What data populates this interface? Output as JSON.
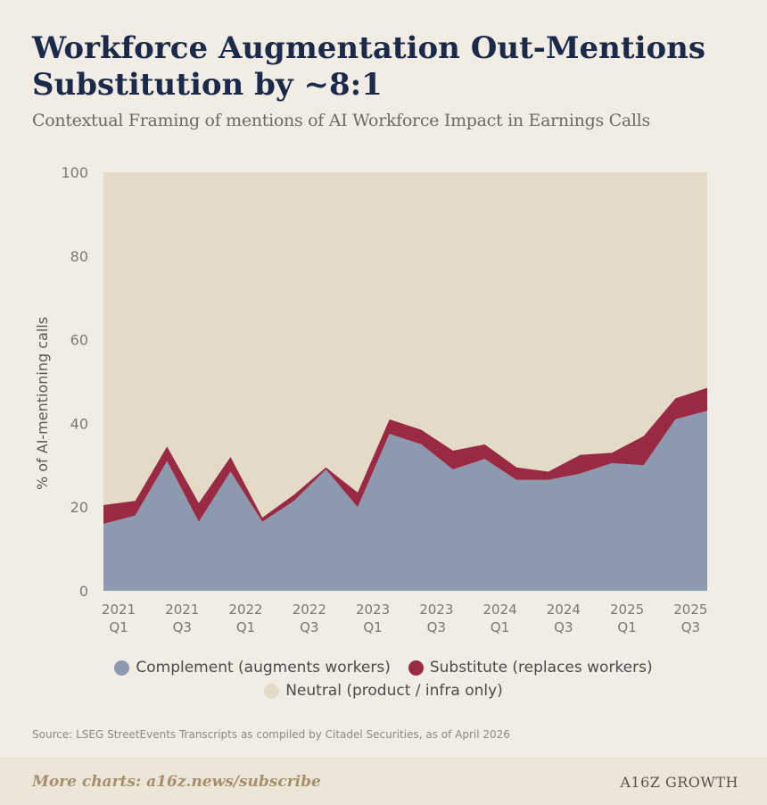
{
  "header": {
    "title": "Workforce Augmentation Out-Mentions\nSubstitution by ~8:1",
    "subtitle": "Contextual Framing of mentions of AI Workforce Impact in Earnings Calls"
  },
  "colors": {
    "complement": "#8b9aaf",
    "substitute": "#9a2a43",
    "neutral": "#e3dac8",
    "axis_text": "#7a7875"
  },
  "chart_data": {
    "type": "area",
    "stacked": true,
    "ylabel": "% of AI-mentioning calls",
    "ylim": [
      0,
      100
    ],
    "yticks": [
      0,
      20,
      40,
      60,
      80,
      100
    ],
    "x": [
      "2021 Q1",
      "2021 Q2",
      "2021 Q3",
      "2021 Q4",
      "2022 Q1",
      "2022 Q2",
      "2022 Q3",
      "2022 Q4",
      "2023 Q1",
      "2023 Q2",
      "2023 Q3",
      "2023 Q4",
      "2024 Q1",
      "2024 Q2",
      "2024 Q3",
      "2024 Q4",
      "2025 Q1",
      "2025 Q2",
      "2025 Q3",
      "2025 Q4"
    ],
    "xtick_labels": [
      {
        "year": "2021",
        "q": "Q1"
      },
      {
        "year": "2021",
        "q": "Q3"
      },
      {
        "year": "2022",
        "q": "Q1"
      },
      {
        "year": "2022",
        "q": "Q3"
      },
      {
        "year": "2023",
        "q": "Q1"
      },
      {
        "year": "2023",
        "q": "Q3"
      },
      {
        "year": "2024",
        "q": "Q1"
      },
      {
        "year": "2024",
        "q": "Q3"
      },
      {
        "year": "2025",
        "q": "Q1"
      },
      {
        "year": "2025",
        "q": "Q3"
      }
    ],
    "xtick_index": [
      0,
      2,
      4,
      6,
      8,
      10,
      12,
      14,
      16,
      18
    ],
    "series": [
      {
        "name": "Complement (augments workers)",
        "key": "complement",
        "values": [
          16,
          18,
          31,
          16.5,
          28.5,
          16.5,
          21.5,
          29,
          20,
          37.5,
          35,
          29,
          31.5,
          26.5,
          26.5,
          28,
          30.5,
          30,
          41,
          43
        ]
      },
      {
        "name": "Substitute (replaces workers)",
        "key": "substitute",
        "values": [
          4.5,
          3.5,
          3.5,
          4.5,
          3.5,
          1,
          1.5,
          0.5,
          3.5,
          3.5,
          3.5,
          4.5,
          3.5,
          3,
          2,
          4.5,
          2.5,
          7,
          5,
          5.5
        ]
      },
      {
        "name": "Neutral (product / infra only)",
        "key": "neutral",
        "values": [
          79.5,
          78.5,
          65.5,
          79,
          68,
          82.5,
          77,
          70.5,
          76.5,
          59,
          61.5,
          66.5,
          65,
          70.5,
          71.5,
          67.5,
          67,
          63,
          54,
          51.5
        ]
      }
    ],
    "legend_position": "bottom"
  },
  "legend": {
    "complement": "Complement (augments workers)",
    "substitute": "Substitute (replaces workers)",
    "neutral": "Neutral (product / infra only)"
  },
  "source": "Source: LSEG StreetEvents Transcripts as compiled by Citadel Securities, as of April 2026",
  "footer": {
    "link": "More charts: a16z.news/subscribe",
    "logo": "A16Z GROWTH"
  }
}
